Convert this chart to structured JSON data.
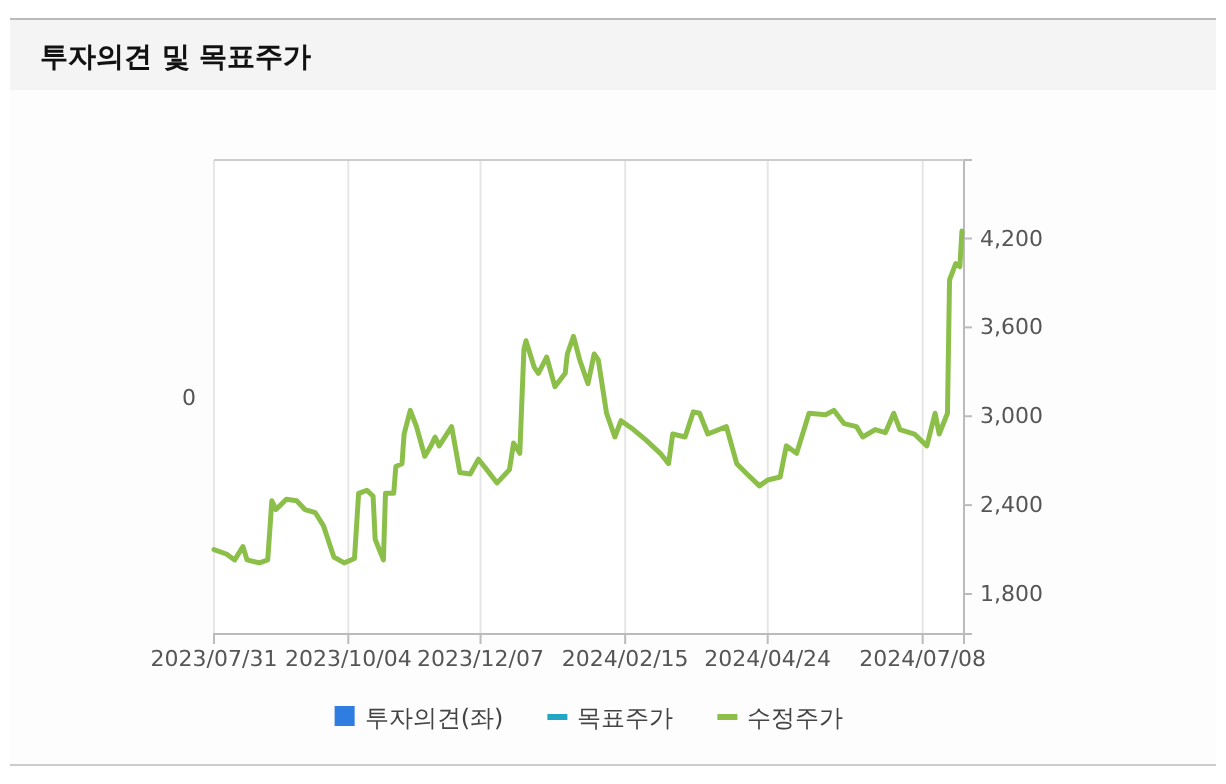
{
  "chart_data": {
    "type": "line",
    "title": "투자의견 및 목표주가",
    "xlim": [
      "2023-07-31",
      "2024-07-28"
    ],
    "xticks": [
      {
        "value": "2023-07-31",
        "label": "2023/07/31"
      },
      {
        "value": "2023-10-04",
        "label": "2023/10/04"
      },
      {
        "value": "2023-12-07",
        "label": "2023/12/07"
      },
      {
        "value": "2024-02-15",
        "label": "2024/02/15"
      },
      {
        "value": "2024-04-24",
        "label": "2024/04/24"
      },
      {
        "value": "2024-07-08",
        "label": "2024/07/08"
      }
    ],
    "annotations": [
      "0"
    ],
    "y2lim": [
      1530,
      4730
    ],
    "y2ticks": [
      {
        "value": 1800,
        "label": "1,800"
      },
      {
        "value": 2400,
        "label": "2,400"
      },
      {
        "value": 3000,
        "label": "3,000"
      },
      {
        "value": 3600,
        "label": "3,600"
      },
      {
        "value": 4200,
        "label": "4,200"
      }
    ],
    "grid": "x",
    "legend": "bottom",
    "series": [
      {
        "name": "투자의견(좌)",
        "type": "bar",
        "color": "#2f7de1"
      },
      {
        "name": "목표주가",
        "color": "#23a6c4",
        "axis": "y2"
      },
      {
        "name": "수정주가",
        "color": "#8cbf4a",
        "axis": "y2",
        "x": [
          "2023-07-31",
          "2023-08-06",
          "2023-08-10",
          "2023-08-14",
          "2023-08-16",
          "2023-08-22",
          "2023-08-26",
          "2023-08-28",
          "2023-08-30",
          "2023-09-04",
          "2023-09-09",
          "2023-09-13",
          "2023-09-18",
          "2023-09-22",
          "2023-09-27",
          "2023-10-02",
          "2023-10-07",
          "2023-10-09",
          "2023-10-13",
          "2023-10-16",
          "2023-10-17",
          "2023-10-21",
          "2023-10-22",
          "2023-10-26",
          "2023-10-27",
          "2023-10-30",
          "2023-10-31",
          "2023-11-03",
          "2023-11-06",
          "2023-11-10",
          "2023-11-13",
          "2023-11-15",
          "2023-11-17",
          "2023-11-23",
          "2023-11-27",
          "2023-12-02",
          "2023-12-06",
          "2023-12-10",
          "2023-12-15",
          "2023-12-21",
          "2023-12-23",
          "2023-12-26",
          "2023-12-28",
          "2023-12-29",
          "2024-01-02",
          "2024-01-04",
          "2024-01-08",
          "2024-01-12",
          "2024-01-17",
          "2024-01-18",
          "2024-01-21",
          "2024-01-24",
          "2024-01-28",
          "2024-01-31",
          "2024-02-02",
          "2024-02-06",
          "2024-02-10",
          "2024-02-13",
          "2024-02-19",
          "2024-02-25",
          "2024-03-03",
          "2024-03-07",
          "2024-03-09",
          "2024-03-15",
          "2024-03-19",
          "2024-03-22",
          "2024-03-26",
          "2024-04-04",
          "2024-04-09",
          "2024-04-14",
          "2024-04-20",
          "2024-04-24",
          "2024-04-30",
          "2024-05-03",
          "2024-05-08",
          "2024-05-14",
          "2024-05-22",
          "2024-05-26",
          "2024-05-31",
          "2024-06-06",
          "2024-06-09",
          "2024-06-15",
          "2024-06-20",
          "2024-06-24",
          "2024-06-27",
          "2024-07-04",
          "2024-07-10",
          "2024-07-14",
          "2024-07-16",
          "2024-07-20",
          "2024-07-21",
          "2024-07-24",
          "2024-07-26",
          "2024-07-27"
        ],
        "values": [
          2100,
          2070,
          2030,
          2120,
          2030,
          2010,
          2030,
          2430,
          2370,
          2440,
          2430,
          2370,
          2350,
          2260,
          2050,
          2010,
          2040,
          2480,
          2500,
          2460,
          2170,
          2030,
          2480,
          2480,
          2660,
          2680,
          2880,
          3040,
          2930,
          2730,
          2800,
          2860,
          2800,
          2930,
          2620,
          2610,
          2710,
          2640,
          2550,
          2640,
          2820,
          2750,
          3450,
          3510,
          3330,
          3290,
          3400,
          3200,
          3290,
          3420,
          3540,
          3380,
          3220,
          3420,
          3380,
          3020,
          2860,
          2970,
          2910,
          2840,
          2750,
          2680,
          2880,
          2860,
          3030,
          3020,
          2880,
          2930,
          2680,
          2610,
          2530,
          2570,
          2590,
          2800,
          2750,
          3020,
          3010,
          3040,
          2950,
          2930,
          2860,
          2910,
          2890,
          3020,
          2910,
          2880,
          2800,
          3020,
          2880,
          3020,
          3920,
          4030,
          4010,
          4250
        ]
      }
    ]
  }
}
